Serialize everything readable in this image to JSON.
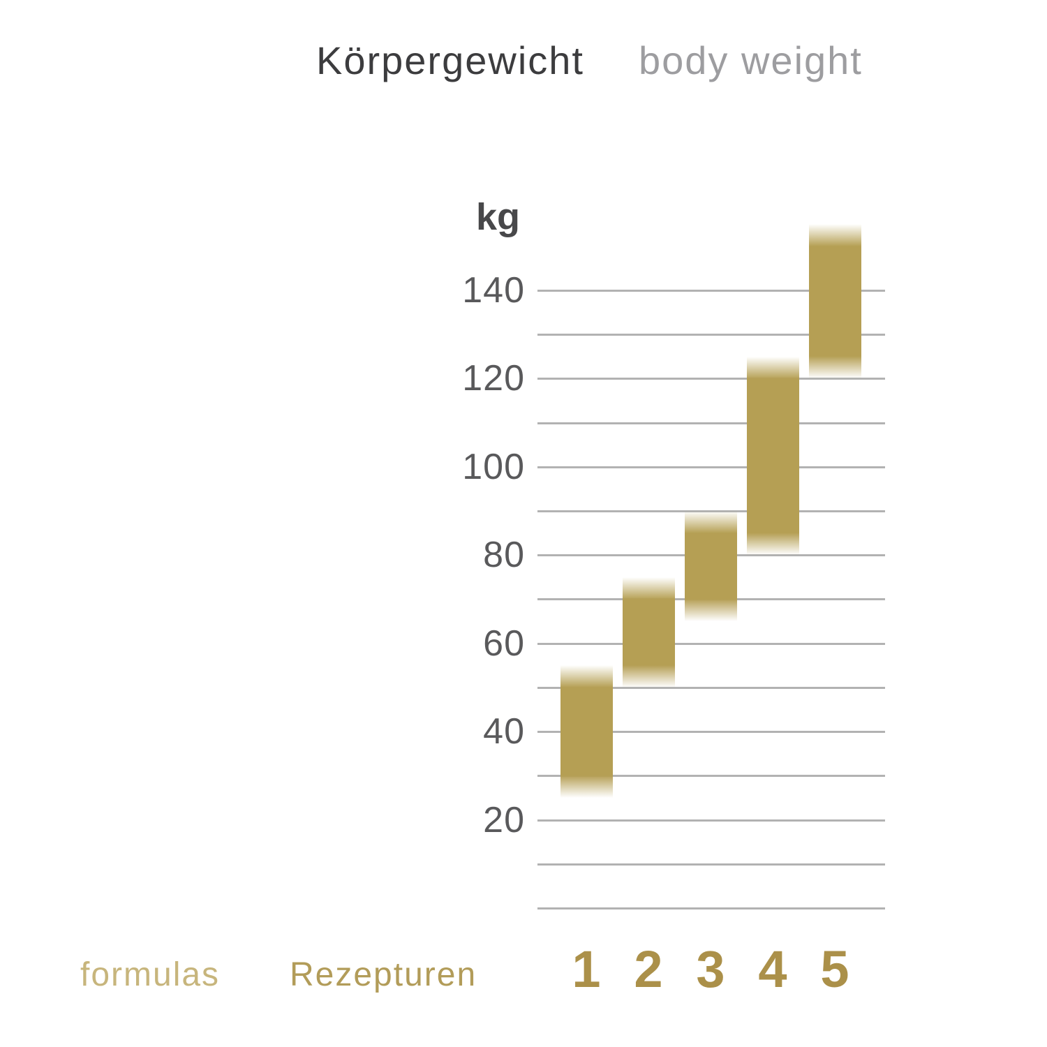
{
  "title": {
    "de": "Körpergewicht",
    "en": "body weight"
  },
  "footer": {
    "formulas_label": "formulas",
    "rezepturen_label": "Rezepturen"
  },
  "colors": {
    "bar_gold": "#b59f54",
    "number_gold": "#ab9049",
    "formulas_gold": "#c7b57c",
    "rezepturen_gold": "#b29c59",
    "title_dark": "#3c3c3e",
    "title_light": "#9d9da0",
    "axis_text": "#59595b",
    "axis_dark": "#48484a",
    "gridline": "#b2b2b2"
  },
  "chart_data": {
    "type": "bar",
    "subtype": "floating-range-columns",
    "title": "Körpergewicht (body weight)",
    "ylabel": "kg",
    "ylim": [
      0,
      158
    ],
    "gridline_range_kg": [
      0,
      140
    ],
    "gridline_step_kg": 10,
    "labeled_ticks_kg": [
      140,
      120,
      100,
      80,
      60,
      40,
      20
    ],
    "grid": true,
    "legend_position": "bottom-left",
    "categories": [
      "1",
      "2",
      "3",
      "4",
      "5"
    ],
    "series": [
      {
        "name": "1",
        "range_kg": [
          25,
          55
        ]
      },
      {
        "name": "2",
        "range_kg": [
          50,
          75
        ]
      },
      {
        "name": "3",
        "range_kg": [
          65,
          90
        ]
      },
      {
        "name": "4",
        "range_kg": [
          80,
          125
        ]
      },
      {
        "name": "5",
        "range_kg": [
          120,
          155
        ]
      }
    ],
    "bar_style": "solid gold column, ~5 kg gradient fade to transparent at top and bottom"
  }
}
